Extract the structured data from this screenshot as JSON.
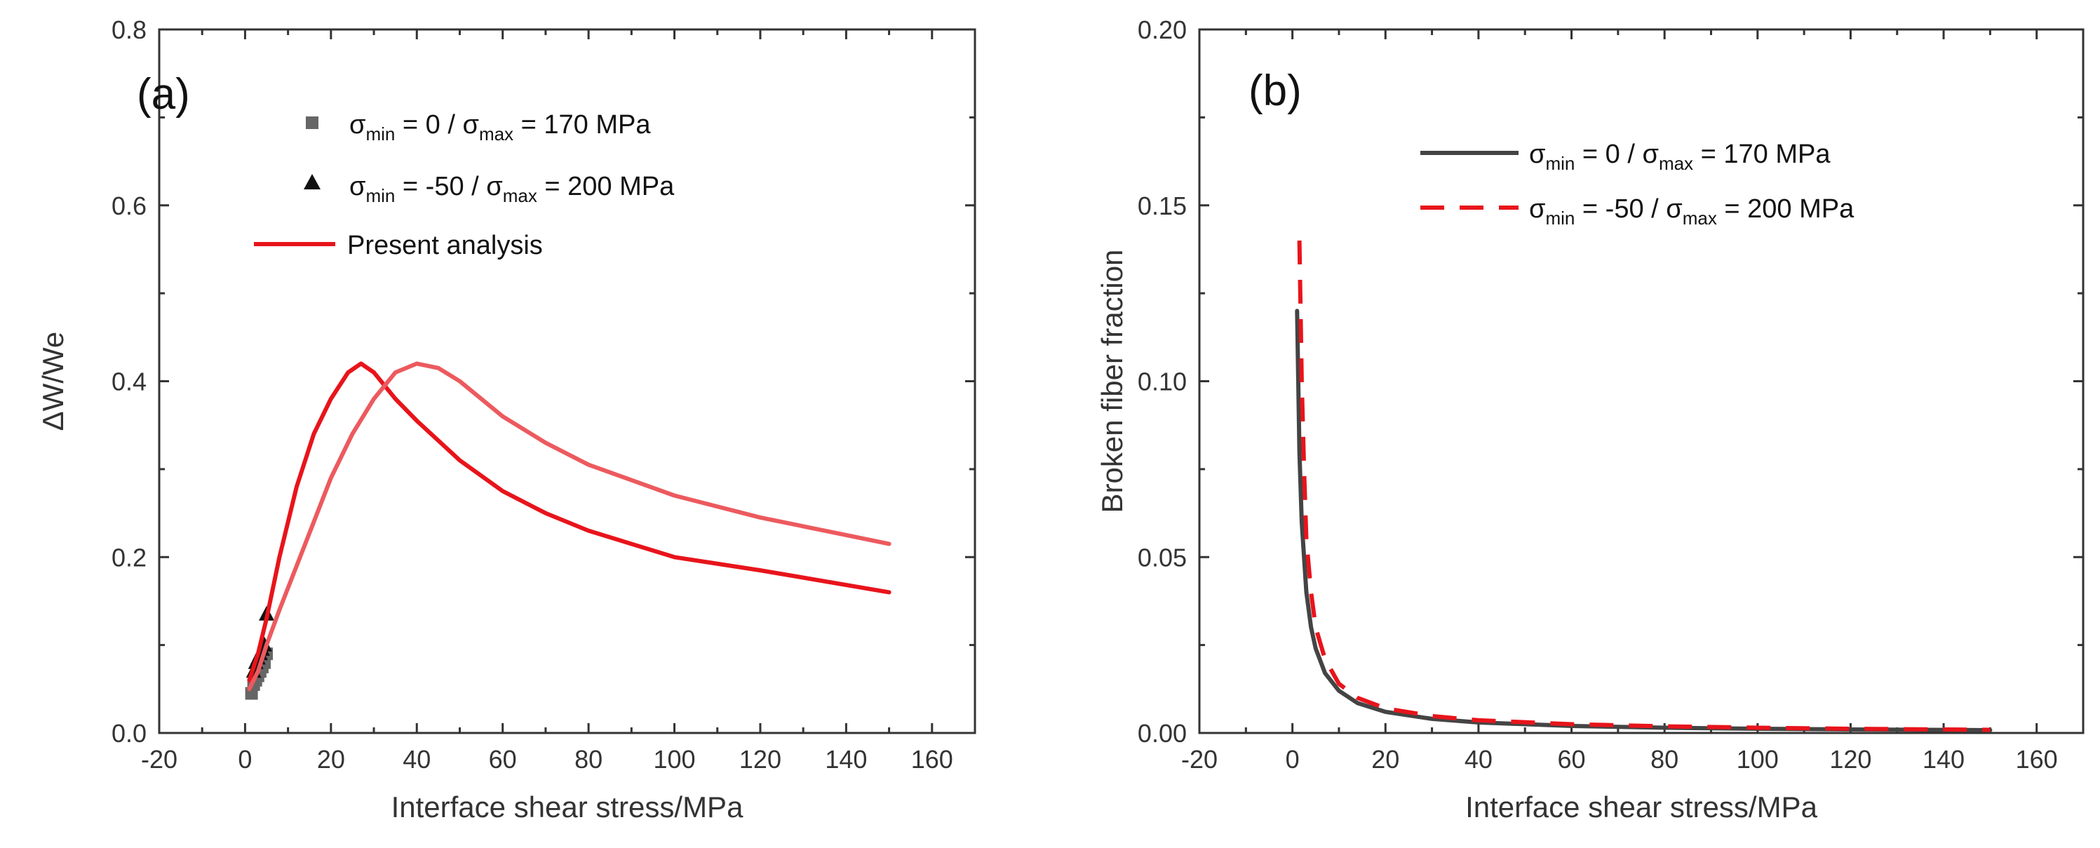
{
  "chart_data": [
    {
      "type": "line",
      "panel_label": "(a)",
      "xlabel": "Interface shear stress/MPa",
      "ylabel": "ΔW/We",
      "xlim": [
        -20,
        170
      ],
      "ylim": [
        0,
        0.8
      ],
      "xticks": [
        "-20",
        "0",
        "20",
        "40",
        "60",
        "80",
        "100",
        "120",
        "140",
        "160"
      ],
      "yticks": [
        "0.0",
        "0.2",
        "0.4",
        "0.6",
        "0.8"
      ],
      "legend": {
        "entries": [
          {
            "sym": "σ",
            "sub1": "min",
            "mid": " = 0 / ",
            "sub2": "max",
            "tail": " = 170 MPa"
          },
          {
            "sym": "σ",
            "sub1": "min",
            "mid": " = -50 / ",
            "sub2": "max",
            "tail": " = 200 MPa"
          },
          {
            "text": "Present analysis"
          }
        ]
      },
      "series": [
        {
          "name": "σmin = 0 / σmax = 170 MPa (experiment)",
          "kind": "scatter",
          "marker": "square",
          "color": "#666666",
          "x": [
            1.5,
            2,
            2.5,
            3,
            3.5,
            4,
            4.5,
            5
          ],
          "y": [
            0.045,
            0.055,
            0.06,
            0.065,
            0.07,
            0.075,
            0.08,
            0.09
          ]
        },
        {
          "name": "σmin = -50 / σmax = 200 MPa (experiment)",
          "kind": "scatter",
          "marker": "triangle",
          "color": "#111111",
          "x": [
            2,
            2.5,
            3,
            3.5,
            4,
            4.5,
            5
          ],
          "y": [
            0.07,
            0.08,
            0.085,
            0.09,
            0.095,
            0.1,
            0.135
          ]
        },
        {
          "name": "Present analysis (σmin = -50 / σmax = 200 MPa)",
          "kind": "line",
          "color": "#e8141b",
          "x": [
            1,
            3,
            5,
            8,
            12,
            16,
            20,
            24,
            27,
            30,
            35,
            40,
            50,
            60,
            70,
            80,
            100,
            120,
            150
          ],
          "y": [
            0.06,
            0.09,
            0.13,
            0.2,
            0.28,
            0.34,
            0.38,
            0.41,
            0.42,
            0.41,
            0.38,
            0.355,
            0.31,
            0.275,
            0.25,
            0.23,
            0.2,
            0.185,
            0.16
          ]
        },
        {
          "name": "Present analysis (σmin = 0 / σmax = 170 MPa)",
          "kind": "line",
          "color": "#ec5a5e",
          "x": [
            1,
            3,
            5,
            8,
            12,
            16,
            20,
            25,
            30,
            35,
            40,
            45,
            50,
            60,
            70,
            80,
            100,
            120,
            150
          ],
          "y": [
            0.05,
            0.07,
            0.1,
            0.14,
            0.19,
            0.24,
            0.29,
            0.34,
            0.38,
            0.41,
            0.42,
            0.415,
            0.4,
            0.36,
            0.33,
            0.305,
            0.27,
            0.245,
            0.215
          ]
        }
      ]
    },
    {
      "type": "line",
      "panel_label": "(b)",
      "xlabel": "Interface shear stress/MPa",
      "ylabel": "Broken fiber fraction",
      "xlim": [
        -20,
        170
      ],
      "ylim": [
        0,
        0.2
      ],
      "xticks": [
        "-20",
        "0",
        "20",
        "40",
        "60",
        "80",
        "100",
        "120",
        "140",
        "160"
      ],
      "yticks": [
        "0.00",
        "0.05",
        "0.10",
        "0.15",
        "0.20"
      ],
      "legend": {
        "entries": [
          {
            "sym": "σ",
            "sub1": "min",
            "mid": " = 0 / ",
            "sub2": "max",
            "tail": " = 170 MPa"
          },
          {
            "sym": "σ",
            "sub1": "min",
            "mid": " = -50 / ",
            "sub2": "max",
            "tail": " = 200 MPa"
          }
        ]
      },
      "series": [
        {
          "name": "σmin = 0 / σmax = 170 MPa",
          "kind": "line",
          "style": "solid",
          "color": "#444444",
          "x": [
            1,
            1.5,
            2,
            3,
            4,
            5,
            7,
            10,
            14,
            20,
            30,
            40,
            60,
            80,
            100,
            120,
            150
          ],
          "y": [
            0.12,
            0.08,
            0.06,
            0.04,
            0.03,
            0.024,
            0.017,
            0.012,
            0.0085,
            0.006,
            0.004,
            0.003,
            0.002,
            0.0015,
            0.0012,
            0.001,
            0.0008
          ]
        },
        {
          "name": "σmin = -50 / σmax = 200 MPa",
          "kind": "line",
          "style": "dashed",
          "color": "#e8141b",
          "x": [
            1.5,
            2,
            2.5,
            3,
            4,
            5,
            7,
            10,
            14,
            20,
            30,
            40,
            60,
            80,
            100,
            120,
            150
          ],
          "y": [
            0.14,
            0.1,
            0.075,
            0.055,
            0.04,
            0.03,
            0.021,
            0.014,
            0.01,
            0.007,
            0.0048,
            0.0036,
            0.0025,
            0.0019,
            0.0015,
            0.0012,
            0.0009
          ]
        }
      ]
    }
  ]
}
